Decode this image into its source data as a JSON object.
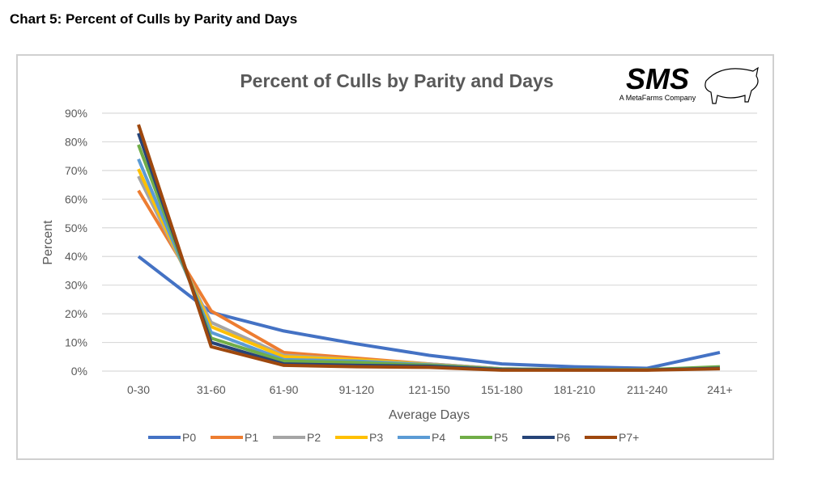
{
  "page_heading": "Chart 5: Percent of Culls by Parity and Days",
  "logo": {
    "text": "SMS",
    "subtext": "A MetaFarms Company"
  },
  "chart_data": {
    "type": "line",
    "title": "Percent of Culls by Parity and Days",
    "xlabel": "Average Days",
    "ylabel": "Percent",
    "categories": [
      "0-30",
      "31-60",
      "61-90",
      "91-120",
      "121-150",
      "151-180",
      "181-210",
      "211-240",
      "241+"
    ],
    "yticks": [
      "0%",
      "10%",
      "20%",
      "30%",
      "40%",
      "50%",
      "60%",
      "70%",
      "80%",
      "90%"
    ],
    "ylim": [
      0,
      90
    ],
    "grid": true,
    "legend": "bottom",
    "series": [
      {
        "name": "P0",
        "color": "#4472C4",
        "values": [
          40,
          20.5,
          14,
          9.5,
          5.5,
          2.5,
          1.5,
          1,
          6.5
        ]
      },
      {
        "name": "P1",
        "color": "#ED7D31",
        "values": [
          63,
          21,
          6.5,
          4.5,
          2.5,
          0.8,
          0.5,
          0.5,
          1
        ]
      },
      {
        "name": "P2",
        "color": "#A5A5A5",
        "values": [
          68,
          17,
          5.5,
          4,
          2.5,
          0.8,
          0.5,
          0.5,
          1.2
        ]
      },
      {
        "name": "P3",
        "color": "#FFC000",
        "values": [
          70.5,
          15.5,
          5,
          4,
          2.3,
          0.7,
          0.5,
          0.5,
          1.2
        ]
      },
      {
        "name": "P4",
        "color": "#5B9BD5",
        "values": [
          74,
          13.5,
          4,
          3.5,
          2.2,
          0.7,
          0.5,
          0.5,
          1.3
        ]
      },
      {
        "name": "P5",
        "color": "#70AD47",
        "values": [
          79,
          11.5,
          3.5,
          3,
          2,
          0.7,
          0.5,
          0.5,
          1.5
        ]
      },
      {
        "name": "P6",
        "color": "#264478",
        "values": [
          83,
          10,
          2.5,
          2,
          1.7,
          0.5,
          0.4,
          0.4,
          1
        ]
      },
      {
        "name": "P7+",
        "color": "#9E480E",
        "values": [
          86,
          8.5,
          2,
          1.5,
          1.3,
          0.3,
          0.3,
          0.3,
          0.8
        ]
      }
    ]
  }
}
